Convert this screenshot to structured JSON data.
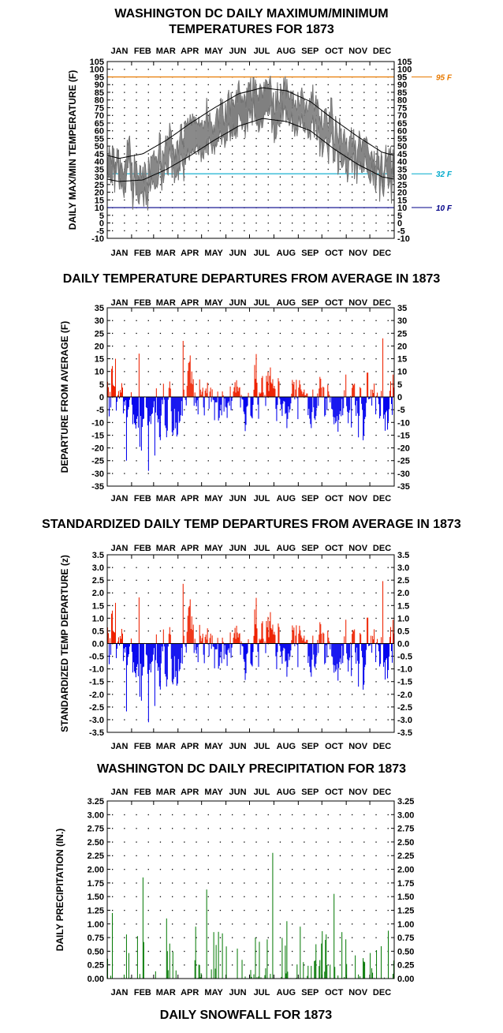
{
  "chart_data": [
    {
      "type": "line",
      "title_lines": [
        "WASHINGTON DC DAILY MAXIMUM/MINIMUM",
        "TEMPERATURES FOR 1873"
      ],
      "xlabel": "",
      "ylabel": "DAILY MAX/MIN TEMPERATURE (F)",
      "x_ticks": [
        "JAN",
        "FEB",
        "MAR",
        "APR",
        "MAY",
        "JUN",
        "JUL",
        "AUG",
        "SEP",
        "OCT",
        "NOV",
        "DEC"
      ],
      "ylim": [
        -10,
        105
      ],
      "y_step": 5,
      "grid": "dotted",
      "reference_lines": [
        {
          "label": "95 F",
          "value": 95,
          "color": "#e87a00"
        },
        {
          "label": "32 F",
          "value": 32,
          "color": "#00aacc"
        },
        {
          "label": "10 F",
          "value": 10,
          "color": "#000088"
        }
      ],
      "normal_high_monthly": [
        42,
        45,
        54,
        65,
        75,
        84,
        88,
        86,
        79,
        67,
        56,
        46
      ],
      "normal_low_monthly": [
        27,
        28,
        35,
        44,
        54,
        63,
        68,
        66,
        60,
        48,
        38,
        30
      ],
      "observed_high_monthly": [
        40,
        36,
        48,
        63,
        73,
        84,
        90,
        84,
        77,
        64,
        49,
        42
      ],
      "observed_low_monthly": [
        25,
        20,
        32,
        42,
        54,
        65,
        70,
        66,
        59,
        46,
        35,
        29
      ],
      "series_color": "#808080"
    },
    {
      "type": "bar",
      "title": "DAILY TEMPERATURE DEPARTURES FROM AVERAGE IN 1873",
      "ylabel": "DEPARTURE FROM AVERAGE (F)",
      "x_ticks": [
        "JAN",
        "FEB",
        "MAR",
        "APR",
        "MAY",
        "JUN",
        "JUL",
        "AUG",
        "SEP",
        "OCT",
        "NOV",
        "DEC"
      ],
      "ylim": [
        -35,
        35
      ],
      "y_step": 5,
      "grid": "dotted",
      "positive_color": "#ee2200",
      "negative_color": "#0000ee",
      "monthly_mean_departure": [
        -2,
        -7,
        -3,
        1,
        -1,
        1,
        2,
        -1,
        -2,
        -1,
        -4,
        1
      ],
      "extremes": {
        "max": 23,
        "min": -29
      }
    },
    {
      "type": "bar",
      "title": "STANDARDIZED DAILY TEMP DEPARTURES FROM AVERAGE IN 1873",
      "ylabel": "STANDARDIZED TEMP DEPARTURE (z)",
      "x_ticks": [
        "JAN",
        "FEB",
        "MAR",
        "APR",
        "MAY",
        "JUN",
        "JUL",
        "AUG",
        "SEP",
        "OCT",
        "NOV",
        "DEC"
      ],
      "ylim": [
        -3.5,
        3.5
      ],
      "y_step": 0.5,
      "grid": "dotted",
      "positive_color": "#ee2200",
      "negative_color": "#0000ee",
      "extremes": {
        "max": 2.7,
        "min": -3.1
      }
    },
    {
      "type": "bar",
      "title": "WASHINGTON DC DAILY PRECIPITATION FOR 1873",
      "ylabel": "DAILY PRECIPITATION (IN.)",
      "x_ticks": [
        "JAN",
        "FEB",
        "MAR",
        "APR",
        "MAY",
        "JUN",
        "JUL",
        "AUG",
        "SEP",
        "OCT",
        "NOV",
        "DEC"
      ],
      "ylim": [
        0,
        3.25
      ],
      "y_step": 0.25,
      "grid": "dotted",
      "bar_color": "#007700",
      "notable_days": [
        {
          "day": 6,
          "value": 1.2
        },
        {
          "day": 45,
          "value": 1.85
        },
        {
          "day": 75,
          "value": 1.1
        },
        {
          "day": 112,
          "value": 0.95
        },
        {
          "day": 126,
          "value": 1.63
        },
        {
          "day": 135,
          "value": 0.85
        },
        {
          "day": 188,
          "value": 0.75
        },
        {
          "day": 210,
          "value": 2.3
        },
        {
          "day": 228,
          "value": 1.05
        },
        {
          "day": 245,
          "value": 0.95
        },
        {
          "day": 288,
          "value": 1.55
        },
        {
          "day": 298,
          "value": 0.85
        }
      ]
    },
    {
      "type": "bar",
      "title": "DAILY SNOWFALL FOR 1873"
    }
  ]
}
